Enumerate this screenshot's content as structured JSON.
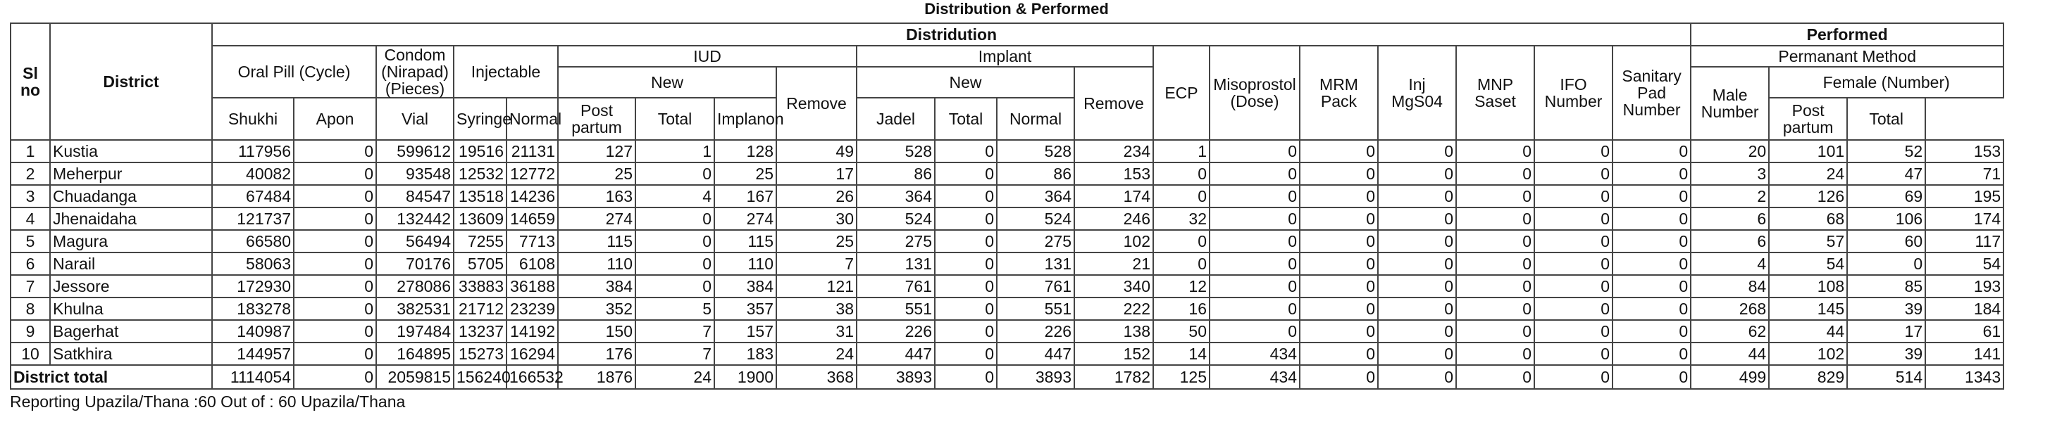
{
  "title": "Distribution & Performed",
  "headers": {
    "sl_no": "Sl no",
    "district": "District",
    "distribution": "Distridution",
    "performed": "Performed",
    "oral_pill": "Oral Pill (Cycle)",
    "condom": "Condom (Nirapad) (Pieces)",
    "injectable": "Injectable",
    "iud": "IUD",
    "implant": "Implant",
    "ecp": "ECP",
    "misoprostol": "Misoprostol (Dose)",
    "mrm_pack": "MRM Pack",
    "inj_mgso4": "Inj MgS04",
    "mnp_saset": "MNP Saset",
    "ifo_number": "IFO Number",
    "sanitary_pad": "Sanitary Pad Number",
    "permanant_method": "Permanant Method",
    "new": "New",
    "remove": "Remove",
    "female_number": "Female (Number)",
    "shukhi": "Shukhi",
    "apon": "Apon",
    "vial": "Vial",
    "syringe": "Syringe",
    "normal": "Normal",
    "post_partum": "Post partum",
    "total": "Total",
    "implanon": "Implanon",
    "jadel": "Jadel",
    "male_number": "Male Number"
  },
  "rows": [
    {
      "sl": "1",
      "district": "Kustia",
      "v": [
        "117956",
        "0",
        "599612",
        "19516",
        "21131",
        "127",
        "1",
        "128",
        "49",
        "528",
        "0",
        "528",
        "234",
        "1",
        "0",
        "0",
        "0",
        "0",
        "0",
        "0",
        "20",
        "101",
        "52",
        "153"
      ]
    },
    {
      "sl": "2",
      "district": "Meherpur",
      "v": [
        "40082",
        "0",
        "93548",
        "12532",
        "12772",
        "25",
        "0",
        "25",
        "17",
        "86",
        "0",
        "86",
        "153",
        "0",
        "0",
        "0",
        "0",
        "0",
        "0",
        "0",
        "3",
        "24",
        "47",
        "71"
      ]
    },
    {
      "sl": "3",
      "district": "Chuadanga",
      "v": [
        "67484",
        "0",
        "84547",
        "13518",
        "14236",
        "163",
        "4",
        "167",
        "26",
        "364",
        "0",
        "364",
        "174",
        "0",
        "0",
        "0",
        "0",
        "0",
        "0",
        "0",
        "2",
        "126",
        "69",
        "195"
      ]
    },
    {
      "sl": "4",
      "district": "Jhenaidaha",
      "v": [
        "121737",
        "0",
        "132442",
        "13609",
        "14659",
        "274",
        "0",
        "274",
        "30",
        "524",
        "0",
        "524",
        "246",
        "32",
        "0",
        "0",
        "0",
        "0",
        "0",
        "0",
        "6",
        "68",
        "106",
        "174"
      ]
    },
    {
      "sl": "5",
      "district": "Magura",
      "v": [
        "66580",
        "0",
        "56494",
        "7255",
        "7713",
        "115",
        "0",
        "115",
        "25",
        "275",
        "0",
        "275",
        "102",
        "0",
        "0",
        "0",
        "0",
        "0",
        "0",
        "0",
        "6",
        "57",
        "60",
        "117"
      ]
    },
    {
      "sl": "6",
      "district": "Narail",
      "v": [
        "58063",
        "0",
        "70176",
        "5705",
        "6108",
        "110",
        "0",
        "110",
        "7",
        "131",
        "0",
        "131",
        "21",
        "0",
        "0",
        "0",
        "0",
        "0",
        "0",
        "0",
        "4",
        "54",
        "0",
        "54"
      ]
    },
    {
      "sl": "7",
      "district": "Jessore",
      "v": [
        "172930",
        "0",
        "278086",
        "33883",
        "36188",
        "384",
        "0",
        "384",
        "121",
        "761",
        "0",
        "761",
        "340",
        "12",
        "0",
        "0",
        "0",
        "0",
        "0",
        "0",
        "84",
        "108",
        "85",
        "193"
      ]
    },
    {
      "sl": "8",
      "district": "Khulna",
      "v": [
        "183278",
        "0",
        "382531",
        "21712",
        "23239",
        "352",
        "5",
        "357",
        "38",
        "551",
        "0",
        "551",
        "222",
        "16",
        "0",
        "0",
        "0",
        "0",
        "0",
        "0",
        "268",
        "145",
        "39",
        "184"
      ]
    },
    {
      "sl": "9",
      "district": "Bagerhat",
      "v": [
        "140987",
        "0",
        "197484",
        "13237",
        "14192",
        "150",
        "7",
        "157",
        "31",
        "226",
        "0",
        "226",
        "138",
        "50",
        "0",
        "0",
        "0",
        "0",
        "0",
        "0",
        "62",
        "44",
        "17",
        "61"
      ]
    },
    {
      "sl": "10",
      "district": "Satkhira",
      "v": [
        "144957",
        "0",
        "164895",
        "15273",
        "16294",
        "176",
        "7",
        "183",
        "24",
        "447",
        "0",
        "447",
        "152",
        "14",
        "434",
        "0",
        "0",
        "0",
        "0",
        "0",
        "44",
        "102",
        "39",
        "141"
      ]
    }
  ],
  "total": {
    "label": "District total",
    "v": [
      "1114054",
      "0",
      "2059815",
      "156240",
      "166532",
      "1876",
      "24",
      "1900",
      "368",
      "3893",
      "0",
      "3893",
      "1782",
      "125",
      "434",
      "0",
      "0",
      "0",
      "0",
      "0",
      "499",
      "829",
      "514",
      "1343"
    ]
  },
  "footer": "Reporting Upazila/Thana :60  Out of : 60 Upazila/Thana"
}
